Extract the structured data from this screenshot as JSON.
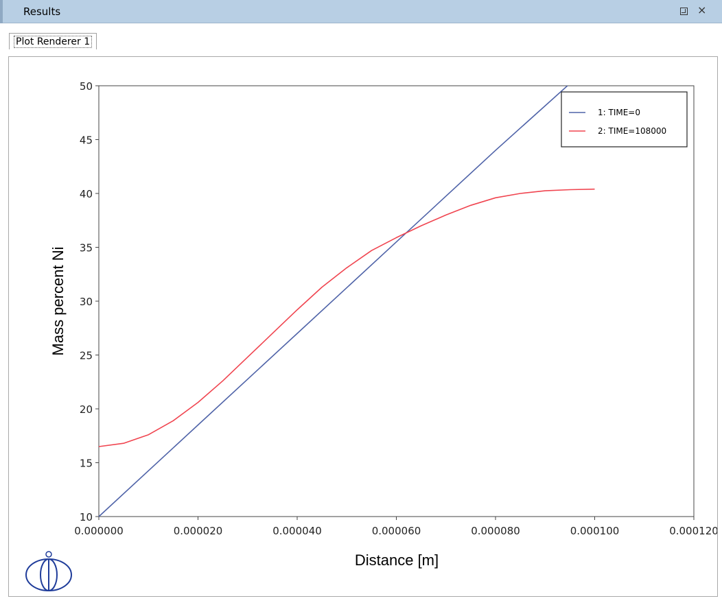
{
  "window": {
    "title": "Results",
    "restore_icon": "restore-window-icon",
    "close_icon": "close-icon",
    "close_glyph": "×"
  },
  "tabs": [
    {
      "label": "Plot Renderer 1",
      "selected": true
    }
  ],
  "chart_data": {
    "type": "line",
    "title": "",
    "xlabel": "Distance [m]",
    "ylabel": "Mass percent Ni",
    "xlim": [
      0,
      0.00012
    ],
    "ylim": [
      10,
      50
    ],
    "x_ticks": [
      "0.000000",
      "0.000020",
      "0.000040",
      "0.000060",
      "0.000080",
      "0.000100",
      "0.000120"
    ],
    "y_ticks": [
      "10",
      "15",
      "20",
      "25",
      "30",
      "35",
      "40",
      "45",
      "50"
    ],
    "grid": false,
    "legend_position": "top-right",
    "series": [
      {
        "name": "1:  TIME=0",
        "color": "#4f63a8",
        "x": [
          0,
          2e-05,
          4e-05,
          6e-05,
          8e-05,
          9.45e-05
        ],
        "y": [
          10,
          18.5,
          27,
          35.5,
          44,
          50
        ]
      },
      {
        "name": "2:  TIME=108000",
        "color": "#f0444f",
        "x": [
          0,
          5e-06,
          1e-05,
          1.5e-05,
          2e-05,
          2.5e-05,
          3e-05,
          3.5e-05,
          4e-05,
          4.5e-05,
          5e-05,
          5.5e-05,
          6e-05,
          6.5e-05,
          7e-05,
          7.5e-05,
          8e-05,
          8.5e-05,
          9e-05,
          9.5e-05,
          0.0001
        ],
        "y": [
          16.5,
          16.8,
          17.6,
          18.9,
          20.6,
          22.6,
          24.8,
          27.0,
          29.2,
          31.3,
          33.1,
          34.7,
          35.9,
          37.0,
          38.0,
          38.9,
          39.6,
          40.0,
          40.25,
          40.35,
          40.4
        ]
      }
    ]
  },
  "logo": {
    "icon": "thermo-calc-logo-icon"
  }
}
